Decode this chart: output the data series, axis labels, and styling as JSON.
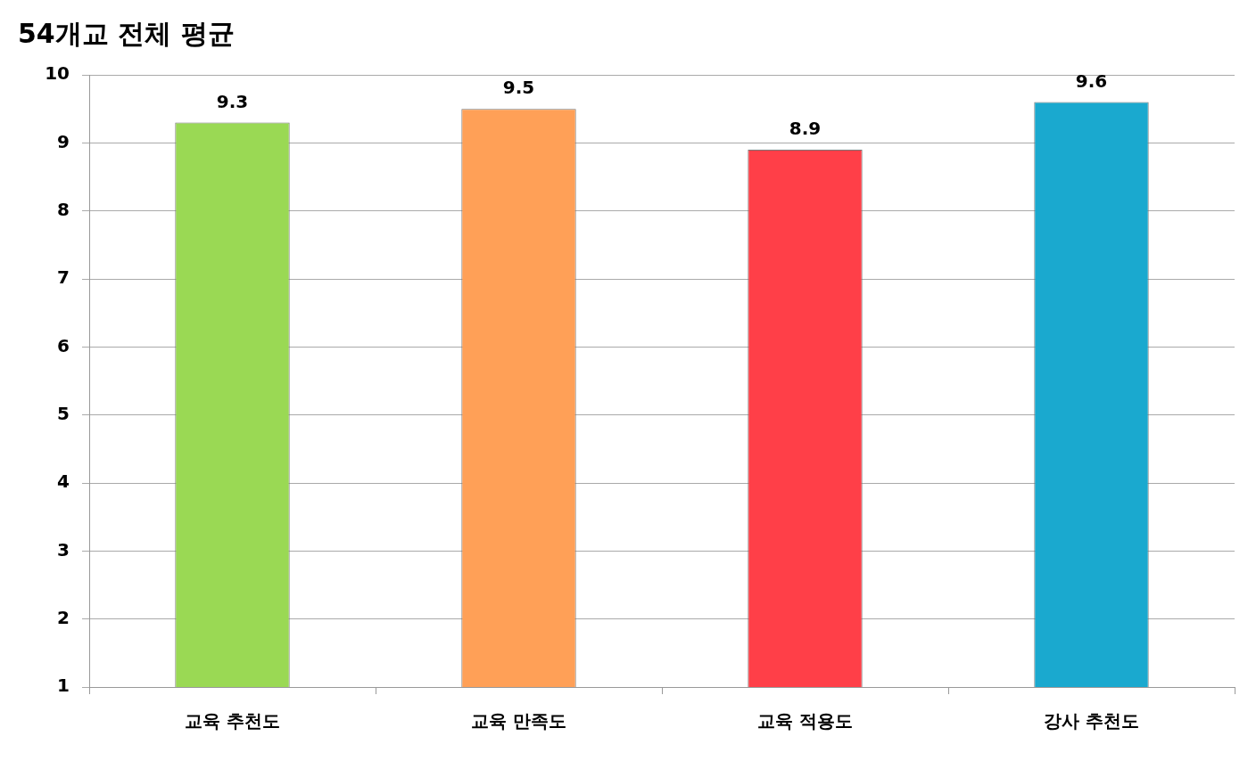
{
  "chart_data": {
    "type": "bar",
    "title": "54개교 전체 평균",
    "categories": [
      "교육 추천도",
      "교육 만족도",
      "교육 적용도",
      "강사 추천도"
    ],
    "values": [
      9.3,
      9.5,
      8.9,
      9.6
    ],
    "colors": [
      "#9ad954",
      "#ffa057",
      "#ff3f48",
      "#1aa9cf"
    ],
    "ylim": [
      1,
      10
    ],
    "yticks": [
      1,
      2,
      3,
      4,
      5,
      6,
      7,
      8,
      9,
      10
    ],
    "grid": "y",
    "data_labels": true
  }
}
